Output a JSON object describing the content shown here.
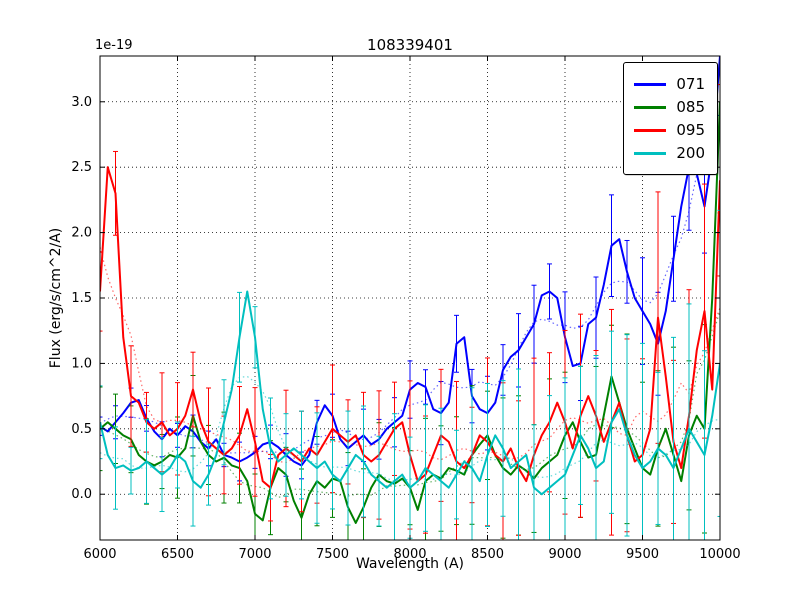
{
  "chart_data": {
    "type": "line",
    "title": "108339401",
    "xlabel": "Wavelength (A)",
    "ylabel": "Flux (erg/s/cm^2/A)",
    "y_offset_factor": "1e-19",
    "xlim": [
      6000,
      10000
    ],
    "ylim": [
      -0.35,
      3.35
    ],
    "xticks": [
      6000,
      6500,
      7000,
      7500,
      8000,
      8500,
      9000,
      9500,
      10000
    ],
    "yticks": [
      0.0,
      0.5,
      1.0,
      1.5,
      2.0,
      2.5,
      3.0
    ],
    "grid": true,
    "grid_style": "dotted",
    "legend_position": "upper right",
    "error_bars": true,
    "x_start": 6000,
    "x_step": 50,
    "n_points": 81,
    "series": [
      {
        "name": "071",
        "color": "#0000ff",
        "err_base": 0.1,
        "err_growth": 0.3,
        "values": [
          0.52,
          0.48,
          0.55,
          0.62,
          0.7,
          0.72,
          0.58,
          0.48,
          0.42,
          0.5,
          0.45,
          0.52,
          0.48,
          0.4,
          0.35,
          0.42,
          0.3,
          0.28,
          0.25,
          0.28,
          0.32,
          0.38,
          0.4,
          0.36,
          0.3,
          0.25,
          0.22,
          0.3,
          0.55,
          0.68,
          0.6,
          0.42,
          0.35,
          0.4,
          0.45,
          0.38,
          0.42,
          0.5,
          0.55,
          0.6,
          0.8,
          0.85,
          0.82,
          0.65,
          0.62,
          0.7,
          1.15,
          1.2,
          0.75,
          0.65,
          0.62,
          0.7,
          0.95,
          1.05,
          1.1,
          1.2,
          1.3,
          1.52,
          1.55,
          1.5,
          1.2,
          0.98,
          1.0,
          1.3,
          1.35,
          1.6,
          1.9,
          1.95,
          1.7,
          1.5,
          1.4,
          1.3,
          1.15,
          1.4,
          1.8,
          2.2,
          2.5,
          2.45,
          2.2,
          2.6,
          3.35
        ]
      },
      {
        "name": "085",
        "color": "#008000",
        "err_base": 0.25,
        "err_growth": 0.45,
        "values": [
          0.5,
          0.55,
          0.5,
          0.45,
          0.42,
          0.3,
          0.25,
          0.22,
          0.25,
          0.3,
          0.28,
          0.35,
          0.6,
          0.4,
          0.3,
          0.25,
          0.28,
          0.22,
          0.2,
          0.1,
          -0.15,
          -0.2,
          0.05,
          0.2,
          0.15,
          -0.05,
          -0.18,
          0.0,
          0.1,
          0.05,
          0.12,
          0.1,
          -0.1,
          -0.22,
          -0.1,
          0.05,
          0.15,
          0.1,
          0.08,
          0.12,
          0.05,
          -0.12,
          0.1,
          0.15,
          0.12,
          0.2,
          0.18,
          0.15,
          0.3,
          0.38,
          0.45,
          0.3,
          0.2,
          0.15,
          0.22,
          0.18,
          0.12,
          0.2,
          0.25,
          0.3,
          0.45,
          0.55,
          0.4,
          0.28,
          0.3,
          0.6,
          0.9,
          0.7,
          0.5,
          0.35,
          0.2,
          0.15,
          0.35,
          0.5,
          0.3,
          0.1,
          0.45,
          0.6,
          0.5,
          1.5,
          3.0
        ]
      },
      {
        "name": "095",
        "color": "#ff0000",
        "err_base": 0.3,
        "err_growth": 0.55,
        "values": [
          1.55,
          2.5,
          2.3,
          1.2,
          0.75,
          0.7,
          0.55,
          0.5,
          0.55,
          0.45,
          0.5,
          0.6,
          0.8,
          0.55,
          0.4,
          0.35,
          0.3,
          0.35,
          0.45,
          0.65,
          0.4,
          0.1,
          0.05,
          0.3,
          0.35,
          0.3,
          0.25,
          0.35,
          0.3,
          0.4,
          0.5,
          0.45,
          0.4,
          0.45,
          0.3,
          0.25,
          0.3,
          0.4,
          0.5,
          0.55,
          0.3,
          0.1,
          0.15,
          0.3,
          0.45,
          0.4,
          0.25,
          0.2,
          0.3,
          0.45,
          0.4,
          0.3,
          0.25,
          0.35,
          0.2,
          0.1,
          0.3,
          0.45,
          0.55,
          0.7,
          0.55,
          0.35,
          0.6,
          0.75,
          0.6,
          0.4,
          0.55,
          0.7,
          0.45,
          0.25,
          0.3,
          0.5,
          1.35,
          0.9,
          0.4,
          0.2,
          0.6,
          1.1,
          1.4,
          0.8,
          2.4
        ]
      },
      {
        "name": "200",
        "color": "#00bfbf",
        "err_base": 0.25,
        "err_growth": 0.65,
        "values": [
          0.55,
          0.3,
          0.2,
          0.22,
          0.18,
          0.2,
          0.25,
          0.2,
          0.15,
          0.2,
          0.3,
          0.25,
          0.1,
          0.05,
          0.15,
          0.3,
          0.55,
          0.8,
          1.2,
          1.55,
          1.2,
          0.65,
          0.35,
          0.25,
          0.3,
          0.35,
          0.3,
          0.25,
          0.2,
          0.25,
          0.15,
          0.1,
          0.2,
          0.3,
          0.25,
          0.15,
          0.1,
          0.05,
          0.1,
          0.15,
          0.05,
          0.1,
          0.2,
          0.15,
          0.1,
          0.05,
          0.15,
          0.25,
          0.2,
          0.1,
          0.3,
          0.45,
          0.35,
          0.2,
          0.25,
          0.3,
          0.05,
          0.0,
          0.05,
          0.1,
          0.15,
          0.3,
          0.45,
          0.35,
          0.2,
          0.25,
          0.55,
          0.65,
          0.45,
          0.3,
          0.2,
          0.25,
          0.35,
          0.3,
          0.2,
          0.35,
          0.5,
          0.4,
          0.3,
          0.6,
          1.0
        ]
      }
    ]
  }
}
